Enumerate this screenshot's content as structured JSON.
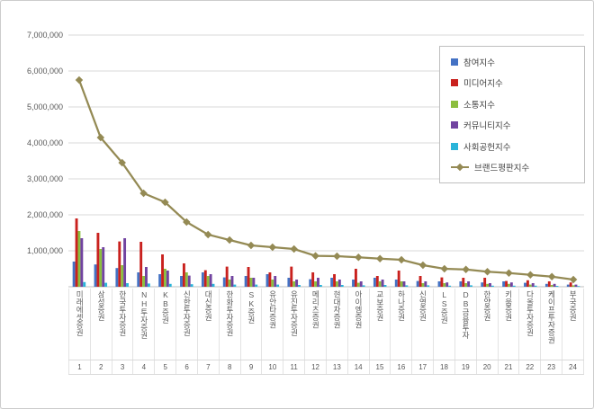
{
  "chart_data": {
    "type": "bar",
    "subtype": "grouped-bars-with-line-overlay",
    "title": "",
    "categories": [
      "미래에셋증권",
      "삼성증권",
      "한국투자증권",
      "NH투자증권",
      "KB증권",
      "신한투자증권",
      "대신증권",
      "한화투자증권",
      "SK증권",
      "유안타증권",
      "유진투자증권",
      "메리츠증권",
      "현대차증권",
      "아이엠증권",
      "교보증권",
      "하나증권",
      "신영증권",
      "LS증권",
      "DB금융투자",
      "한양증권",
      "키움증권",
      "다올투자증권",
      "케이프투자증권",
      "부국증권"
    ],
    "category_numbers": [
      "1",
      "2",
      "3",
      "4",
      "5",
      "6",
      "7",
      "8",
      "9",
      "10",
      "11",
      "12",
      "13",
      "14",
      "15",
      "16",
      "17",
      "18",
      "19",
      "20",
      "21",
      "22",
      "23",
      "24"
    ],
    "y_axis": {
      "min": 0,
      "max": 7000000,
      "step": 1000000,
      "tick_labels": [
        "1,000,000",
        "2,000,000",
        "3,000,000",
        "4,000,000",
        "5,000,000",
        "6,000,000",
        "7,000,000"
      ]
    },
    "grid": true,
    "legend_position": "top-right",
    "series": [
      {
        "name": "참여지수",
        "type": "bar",
        "color": "#4472c4",
        "values": [
          700000,
          620000,
          520000,
          400000,
          350000,
          300000,
          400000,
          260000,
          300000,
          350000,
          250000,
          210000,
          250000,
          200000,
          250000,
          200000,
          160000,
          150000,
          150000,
          120000,
          150000,
          110000,
          80000,
          60000
        ]
      },
      {
        "name": "미디어지수",
        "type": "bar",
        "color": "#c9211e",
        "values": [
          1900000,
          1500000,
          1260000,
          1250000,
          900000,
          650000,
          460000,
          560000,
          550000,
          400000,
          560000,
          400000,
          350000,
          500000,
          300000,
          450000,
          300000,
          260000,
          250000,
          250000,
          160000,
          180000,
          150000,
          120000
        ]
      },
      {
        "name": "소통지수",
        "type": "bar",
        "color": "#8cbe3f",
        "values": [
          1550000,
          1050000,
          600000,
          300000,
          500000,
          400000,
          300000,
          200000,
          250000,
          200000,
          150000,
          150000,
          150000,
          110000,
          150000,
          150000,
          100000,
          100000,
          100000,
          80000,
          80000,
          60000,
          50000,
          40000
        ]
      },
      {
        "name": "커뮤니티지수",
        "type": "bar",
        "color": "#7143a0",
        "values": [
          1350000,
          1100000,
          1350000,
          550000,
          450000,
          310000,
          350000,
          300000,
          250000,
          300000,
          200000,
          250000,
          200000,
          150000,
          200000,
          150000,
          150000,
          120000,
          150000,
          100000,
          120000,
          100000,
          80000,
          60000
        ]
      },
      {
        "name": "사회공헌지수",
        "type": "bar",
        "color": "#2ab4d9",
        "values": [
          130000,
          110000,
          100000,
          90000,
          80000,
          70000,
          80000,
          60000,
          60000,
          60000,
          50000,
          50000,
          50000,
          40000,
          50000,
          40000,
          40000,
          30000,
          40000,
          30000,
          30000,
          30000,
          25000,
          20000
        ]
      },
      {
        "name": "브랜드평판지수",
        "type": "line",
        "color": "#948a54",
        "values": [
          5750000,
          4150000,
          3450000,
          2600000,
          2350000,
          1800000,
          1450000,
          1300000,
          1150000,
          1100000,
          1050000,
          860000,
          850000,
          820000,
          780000,
          750000,
          600000,
          500000,
          480000,
          420000,
          380000,
          330000,
          280000,
          200000
        ]
      }
    ]
  }
}
